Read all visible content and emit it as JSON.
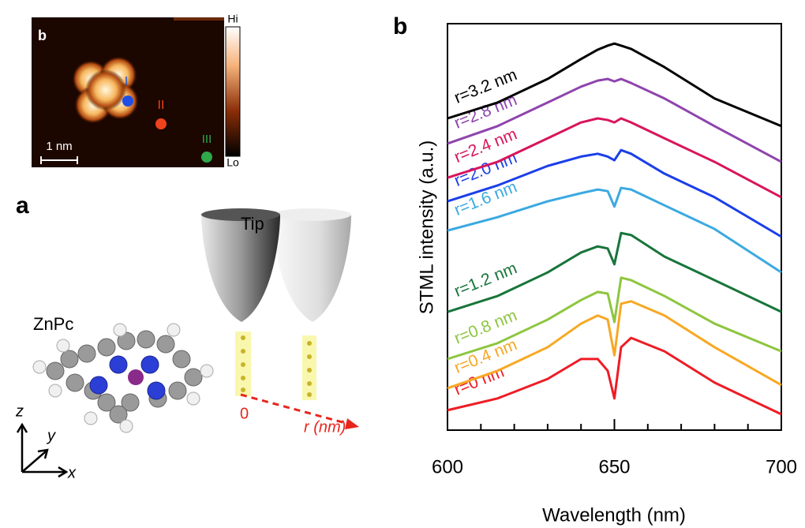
{
  "chart_data": {
    "type": "line",
    "panel_label": "b",
    "xlabel": "Wavelength (nm)",
    "ylabel": "STML intensity (a.u.)",
    "x": [
      600,
      615,
      630,
      640,
      645,
      648,
      650,
      652,
      655,
      665,
      680,
      700
    ],
    "xlim": [
      600,
      700
    ],
    "xticks": [
      600,
      650,
      700
    ],
    "xminor_ticks": [
      600,
      610,
      620,
      630,
      640,
      650,
      660,
      670,
      680,
      690,
      700
    ],
    "ylim": [
      0,
      10
    ],
    "series": [
      {
        "name": "r=0 nm",
        "color": "#ee1c25",
        "values": [
          0.49,
          0.78,
          1.26,
          1.75,
          1.75,
          1.46,
          0.78,
          2.04,
          2.27,
          1.94,
          1.17,
          0.39
        ]
      },
      {
        "name": "r=0.4 nm",
        "color": "#f7a823",
        "values": [
          1.03,
          1.46,
          2.04,
          2.62,
          2.82,
          2.72,
          1.84,
          3.11,
          3.17,
          2.82,
          2.04,
          1.11
        ]
      },
      {
        "name": "r=0.8 nm",
        "color": "#8dc63f",
        "values": [
          1.75,
          2.14,
          2.72,
          3.2,
          3.4,
          3.36,
          2.66,
          3.75,
          3.69,
          3.3,
          2.62,
          1.94
        ]
      },
      {
        "name": "r=1.2 nm",
        "color": "#17753a",
        "values": [
          2.91,
          3.3,
          3.88,
          4.37,
          4.52,
          4.47,
          4.08,
          4.85,
          4.8,
          4.27,
          3.69,
          2.91
        ]
      },
      {
        "name": "r=1.6 nm",
        "color": "#3ba9e1",
        "values": [
          4.91,
          5.24,
          5.63,
          5.83,
          5.92,
          5.88,
          5.5,
          5.96,
          5.92,
          5.53,
          4.95,
          3.88
        ]
      },
      {
        "name": "r=2.0 nm",
        "color": "#1b3fe8",
        "values": [
          5.63,
          6.02,
          6.5,
          6.73,
          6.8,
          6.73,
          6.64,
          6.89,
          6.8,
          6.31,
          5.73,
          4.76
        ]
      },
      {
        "name": "r=2.4 nm",
        "color": "#d8155c",
        "values": [
          6.21,
          6.6,
          7.18,
          7.57,
          7.67,
          7.63,
          7.57,
          7.67,
          7.57,
          7.18,
          6.6,
          5.73
        ]
      },
      {
        "name": "r=2.8 nm",
        "color": "#8e44ad",
        "values": [
          7.05,
          7.48,
          8.06,
          8.45,
          8.6,
          8.64,
          8.58,
          8.64,
          8.54,
          8.16,
          7.48,
          6.6
        ]
      },
      {
        "name": "r=3.2 nm",
        "color": "#000000",
        "values": [
          7.67,
          8.06,
          8.64,
          9.13,
          9.36,
          9.46,
          9.51,
          9.46,
          9.38,
          8.93,
          8.16,
          7.48
        ]
      }
    ]
  },
  "figure_left": {
    "image_label": "b",
    "scale_bar": "1 nm",
    "colorbar_high": "Hi",
    "colorbar_low": "Lo",
    "points": [
      "I",
      "II",
      "III"
    ],
    "panel_label": "a",
    "tip_label": "Tip",
    "molecule_label": "ZnPc",
    "origin_label": "0",
    "r_axis_label": "r (nm)",
    "axes": [
      "z",
      "y",
      "x"
    ]
  }
}
